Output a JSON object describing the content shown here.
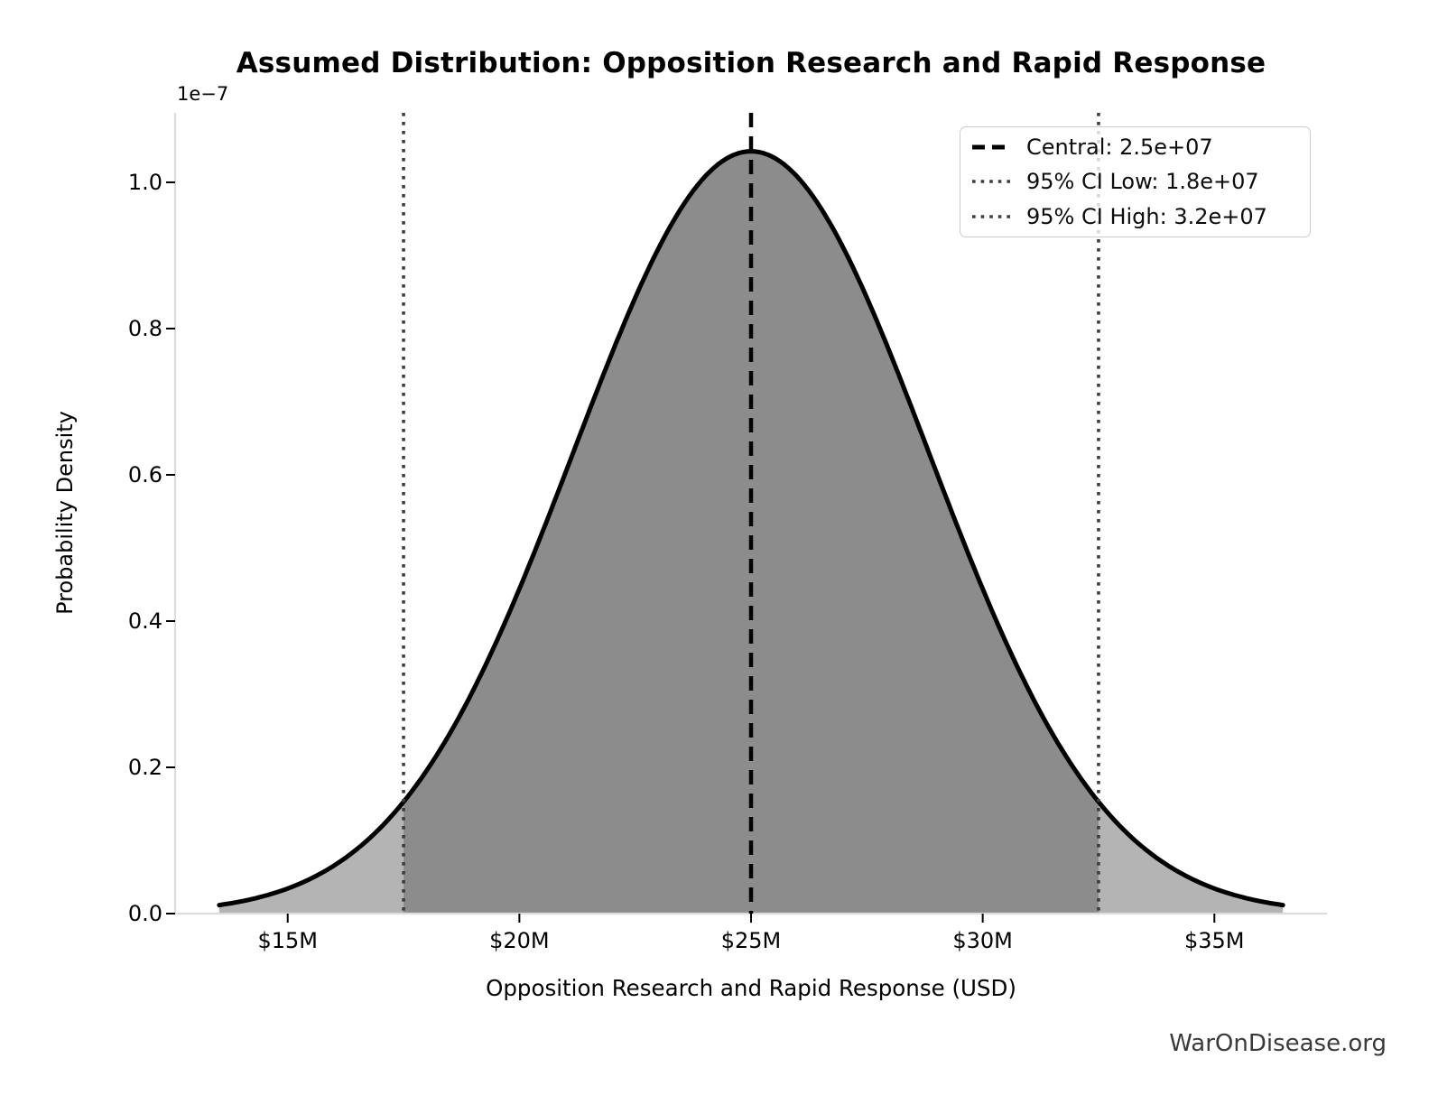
{
  "chart_data": {
    "type": "area",
    "title": "Assumed Distribution: Opposition Research and Rapid Response",
    "xlabel": "Opposition Research and Rapid Response (USD)",
    "ylabel": "Probability Density",
    "y_offset_label": "1e−7",
    "grid": false,
    "distribution": {
      "shape": "normal",
      "mean": 25000000,
      "sigma": 3827000,
      "domain": [
        13520000,
        36480000
      ],
      "peak_density": 1.04e-07
    },
    "xlim": [
      12570000,
      37430000
    ],
    "ylim": [
      0,
      1.095e-07
    ],
    "x_ticks": [
      {
        "value": 15000000,
        "label": "$15M"
      },
      {
        "value": 20000000,
        "label": "$20M"
      },
      {
        "value": 25000000,
        "label": "$25M"
      },
      {
        "value": 30000000,
        "label": "$30M"
      },
      {
        "value": 35000000,
        "label": "$35M"
      }
    ],
    "y_ticks": [
      {
        "value": 0,
        "label": "0.0"
      },
      {
        "value": 2e-08,
        "label": "0.2"
      },
      {
        "value": 4e-08,
        "label": "0.4"
      },
      {
        "value": 6e-08,
        "label": "0.6"
      },
      {
        "value": 8e-08,
        "label": "0.8"
      },
      {
        "value": 1e-07,
        "label": "1.0"
      }
    ],
    "lines": [
      {
        "name": "central",
        "style": "dashed",
        "value": 25000000,
        "label": "Central: 2.5e+07"
      },
      {
        "name": "ci_low",
        "style": "dotted",
        "value": 18000000,
        "drawn_at": 17500000,
        "label": "95% CI Low: 1.8e+07"
      },
      {
        "name": "ci_high",
        "style": "dotted",
        "value": 32000000,
        "drawn_at": 32500000,
        "label": "95% CI High: 3.2e+07"
      }
    ],
    "ci_band": [
      17500000,
      32500000
    ],
    "legend": {
      "position": "upper right",
      "entries": [
        {
          "style": "dashed",
          "label": "Central: 2.5e+07"
        },
        {
          "style": "dotted",
          "label": "95% CI Low: 1.8e+07"
        },
        {
          "style": "dotted",
          "label": "95% CI High: 3.2e+07"
        }
      ]
    },
    "colors": {
      "curve": "#000000",
      "fill_tail": "#b4b4b4",
      "fill_ci": "#8c8c8c",
      "dashed_line": "#000000",
      "dotted_line": "#3d3d3d",
      "spine": "#dcdcdc",
      "tick": "#000000",
      "text": "#000000",
      "legend_border": "#cccccc",
      "watermark": "#3a3a3a"
    }
  },
  "watermark": "WarOnDisease.org"
}
